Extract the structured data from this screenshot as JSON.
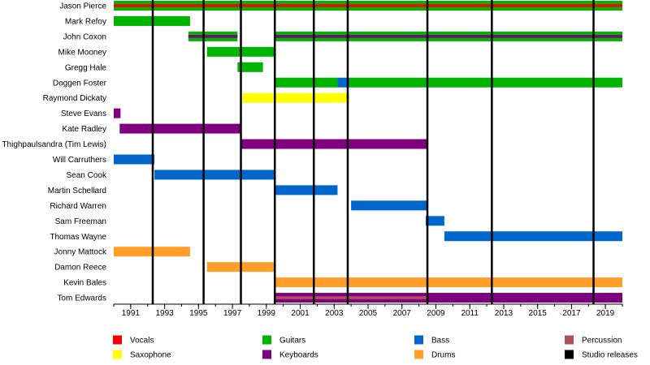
{
  "chart_data": {
    "type": "timeline",
    "x_axis": {
      "min": 1990,
      "max": 2020,
      "tick_labels": [
        "1991",
        "1993",
        "1995",
        "1997",
        "1999",
        "2001",
        "2003",
        "2005",
        "2007",
        "2009",
        "2011",
        "2013",
        "2015",
        "2017",
        "2019"
      ]
    },
    "grid": false,
    "legend_position": "bottom",
    "colors": {
      "Vocals": "#ff0000",
      "Saxophone": "#ffff00",
      "Guitars": "#00b400",
      "Keyboards": "#7f007f",
      "Bass": "#0066cc",
      "Drums": "#ff9f29",
      "Percussion": "#b44f5a",
      "Studio releases": "#000000"
    },
    "legend": [
      {
        "label": "Vocals",
        "color": "#ff0000"
      },
      {
        "label": "Saxophone",
        "color": "#ffff00"
      },
      {
        "label": "Guitars",
        "color": "#00b400"
      },
      {
        "label": "Keyboards",
        "color": "#7f007f"
      },
      {
        "label": "Bass",
        "color": "#0066cc"
      },
      {
        "label": "Drums",
        "color": "#ff9f29"
      },
      {
        "label": "Percussion",
        "color": "#b44f5a"
      },
      {
        "label": "Studio releases",
        "color": "#000000"
      }
    ],
    "studio_releases": [
      1992.3,
      1995.3,
      1997.5,
      1999.5,
      2001.8,
      2003.8,
      2008.5,
      2012.3,
      2018.3
    ],
    "members": [
      {
        "name": "Jason Pierce",
        "spans": [
          {
            "role": "Guitars",
            "start": 1990,
            "end": 2020
          }
        ],
        "overlays": [
          {
            "role": "Vocals",
            "start": 1990,
            "end": 2020
          }
        ]
      },
      {
        "name": "Mark Refoy",
        "spans": [
          {
            "role": "Guitars",
            "start": 1990,
            "end": 1994.5
          }
        ],
        "overlays": []
      },
      {
        "name": "John Coxon",
        "spans": [
          {
            "role": "Guitars",
            "start": 1994.4,
            "end": 1997.3
          },
          {
            "role": "Guitars",
            "start": 1999.5,
            "end": 2020
          }
        ],
        "overlays": [
          {
            "role": "Keyboards",
            "start": 1994.4,
            "end": 1997.3
          },
          {
            "role": "Keyboards",
            "start": 1999.5,
            "end": 2020
          }
        ]
      },
      {
        "name": "Mike Mooney",
        "spans": [
          {
            "role": "Guitars",
            "start": 1995.5,
            "end": 1999.5
          }
        ],
        "overlays": []
      },
      {
        "name": "Gregg Hale",
        "spans": [
          {
            "role": "Guitars",
            "start": 1997.3,
            "end": 1998.8
          }
        ],
        "overlays": []
      },
      {
        "name": "Doggen Foster",
        "spans": [
          {
            "role": "Guitars",
            "start": 1999.5,
            "end": 2003.2
          },
          {
            "role": "Bass",
            "start": 2003.2,
            "end": 2003.9
          },
          {
            "role": "Guitars",
            "start": 2003.9,
            "end": 2020
          }
        ],
        "overlays": []
      },
      {
        "name": "Raymond Dickaty",
        "spans": [
          {
            "role": "Saxophone",
            "start": 1997.6,
            "end": 2003.9
          }
        ],
        "overlays": []
      },
      {
        "name": "Steve Evans",
        "spans": [
          {
            "role": "Keyboards",
            "start": 1990,
            "end": 1990.4
          }
        ],
        "overlays": []
      },
      {
        "name": "Kate Radley",
        "spans": [
          {
            "role": "Keyboards",
            "start": 1990.35,
            "end": 1997.5
          }
        ],
        "overlays": []
      },
      {
        "name": "Thighpaulsandra (Tim Lewis)",
        "spans": [
          {
            "role": "Keyboards",
            "start": 1997.5,
            "end": 2008.5
          }
        ],
        "overlays": []
      },
      {
        "name": "Will Carruthers",
        "spans": [
          {
            "role": "Bass",
            "start": 1990,
            "end": 1992.4
          }
        ],
        "overlays": []
      },
      {
        "name": "Sean Cook",
        "spans": [
          {
            "role": "Bass",
            "start": 1992.4,
            "end": 1999.5
          }
        ],
        "overlays": []
      },
      {
        "name": "Martin Schellard",
        "spans": [
          {
            "role": "Bass",
            "start": 1999.5,
            "end": 2003.2
          }
        ],
        "overlays": []
      },
      {
        "name": "Richard Warren",
        "spans": [
          {
            "role": "Bass",
            "start": 2004.0,
            "end": 2008.5
          }
        ],
        "overlays": []
      },
      {
        "name": "Sam Freeman",
        "spans": [
          {
            "role": "Bass",
            "start": 2008.4,
            "end": 2009.5
          }
        ],
        "overlays": []
      },
      {
        "name": "Thomas Wayne",
        "spans": [
          {
            "role": "Bass",
            "start": 2009.5,
            "end": 2020
          }
        ],
        "overlays": []
      },
      {
        "name": "Jonny Mattock",
        "spans": [
          {
            "role": "Drums",
            "start": 1990,
            "end": 1994.5
          }
        ],
        "overlays": []
      },
      {
        "name": "Damon Reece",
        "spans": [
          {
            "role": "Drums",
            "start": 1995.5,
            "end": 1999.5
          }
        ],
        "overlays": []
      },
      {
        "name": "Kevin Bales",
        "spans": [
          {
            "role": "Drums",
            "start": 1999.5,
            "end": 2020
          }
        ],
        "overlays": []
      },
      {
        "name": "Tom Edwards",
        "spans": [
          {
            "role": "Keyboards",
            "start": 1999.5,
            "end": 2020
          }
        ],
        "overlays": [
          {
            "role": "Percussion",
            "start": 1999.5,
            "end": 2008.5
          }
        ]
      }
    ]
  }
}
